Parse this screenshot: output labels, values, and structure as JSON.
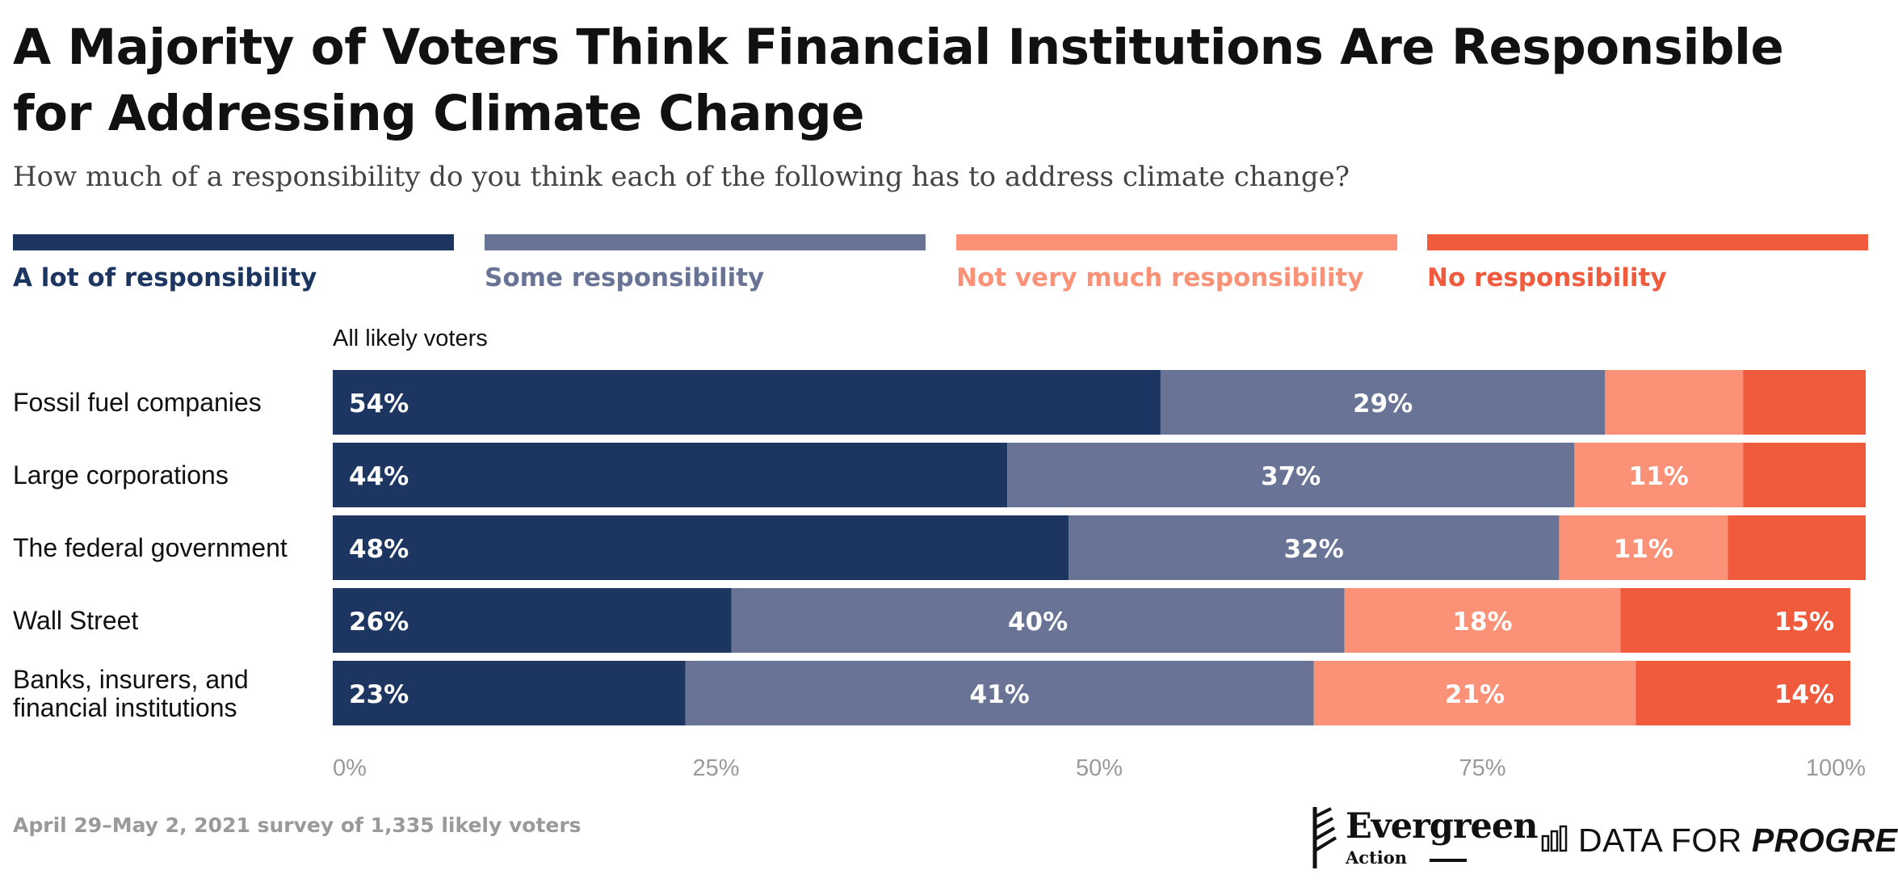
{
  "header": {
    "title": "A Majority of Voters Think Financial Institutions Are Responsible for Addressing Climate Change",
    "subtitle": "How much of a responsibility do you think each of the following has to address climate change?"
  },
  "legend": [
    {
      "label": "A lot of responsibility",
      "color": "#1c3661"
    },
    {
      "label": "Some responsibility",
      "color": "#687396"
    },
    {
      "label": "Not very much responsibility",
      "color": "#fb9277"
    },
    {
      "label": "No responsibility",
      "color": "#f05a3d"
    }
  ],
  "chart_data": {
    "type": "bar",
    "orientation": "horizontal",
    "stacked": true,
    "group_label": "All likely voters",
    "categories": [
      "Fossil fuel companies",
      "Large corporations",
      "The federal government",
      "Wall Street",
      "Banks, insurers, and financial institutions"
    ],
    "series": [
      {
        "name": "A lot of responsibility",
        "values": [
          54,
          44,
          48,
          26,
          23
        ],
        "color": "#1c3661"
      },
      {
        "name": "Some responsibility",
        "values": [
          29,
          37,
          32,
          40,
          41
        ],
        "color": "#687396"
      },
      {
        "name": "Not very much responsibility",
        "values": [
          9,
          11,
          11,
          18,
          21
        ],
        "color": "#fb9277"
      },
      {
        "name": "No responsibility",
        "values": [
          8,
          8,
          9,
          15,
          14
        ],
        "color": "#f05a3d"
      }
    ],
    "data_labels": [
      [
        "54%",
        "29%",
        "",
        ""
      ],
      [
        "44%",
        "37%",
        "11%",
        ""
      ],
      [
        "48%",
        "32%",
        "11%",
        ""
      ],
      [
        "26%",
        "40%",
        "18%",
        "15%"
      ],
      [
        "23%",
        "41%",
        "21%",
        "14%"
      ]
    ],
    "x_ticks": [
      "0%",
      "25%",
      "50%",
      "75%",
      "100%"
    ],
    "xlim": [
      0,
      100
    ],
    "grid": false,
    "legend_position": "top"
  },
  "footer": {
    "note": "April 29–May 2, 2021 survey of 1,335 likely voters",
    "logos": {
      "evergreen_name": "Evergreen",
      "evergreen_sub": "Action",
      "dfp_prefix": "DATA FOR ",
      "dfp_emphasis": "PROGRESS"
    }
  }
}
